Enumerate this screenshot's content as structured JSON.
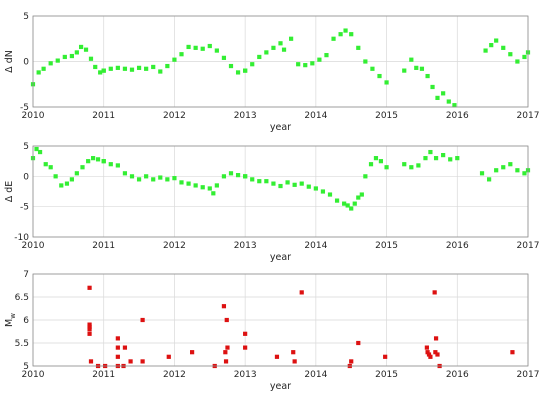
{
  "chart_data": [
    {
      "type": "scatter",
      "title": "",
      "xlabel": "year",
      "ylabel": "Δ dN",
      "xlim": [
        2010,
        2017
      ],
      "ylim": [
        -5,
        5
      ],
      "xticks": [
        "2010",
        "2011",
        "2012",
        "2013",
        "2014",
        "2015",
        "2016",
        "2017"
      ],
      "yticks": [
        "-5",
        "0",
        "5"
      ],
      "grid": true,
      "color": "#33ee33",
      "series": [
        {
          "segments": [
            {
              "x": [
                2010.0,
                2010.08,
                2010.15,
                2010.25,
                2010.35,
                2010.45,
                2010.55,
                2010.62,
                2010.68,
                2010.75,
                2010.82,
                2010.88,
                2010.95,
                2011.0
              ],
              "y": [
                -2.5,
                -1.2,
                -0.8,
                -0.2,
                0.1,
                0.5,
                0.6,
                1.0,
                1.6,
                1.3,
                0.3,
                -0.6,
                -1.2,
                -1.0
              ]
            },
            {
              "x": [
                2011.0,
                2011.1,
                2011.2,
                2011.3,
                2011.4,
                2011.5,
                2011.6,
                2011.7,
                2011.8,
                2011.9,
                2012.0,
                2012.1,
                2012.2,
                2012.3,
                2012.4,
                2012.5,
                2012.6,
                2012.7,
                2012.8,
                2012.9,
                2013.0
              ],
              "y": [
                -1.0,
                -0.8,
                -0.7,
                -0.8,
                -0.9,
                -0.7,
                -0.8,
                -0.6,
                -1.1,
                -0.5,
                0.2,
                0.8,
                1.6,
                1.5,
                1.4,
                1.7,
                1.2,
                0.4,
                -0.5,
                -1.2,
                -1.0
              ]
            },
            {
              "x": [
                2013.0,
                2013.1,
                2013.2,
                2013.3,
                2013.4,
                2013.5,
                2013.55,
                2013.65,
                2013.75,
                2013.85,
                2013.95,
                2014.05,
                2014.15,
                2014.25,
                2014.35,
                2014.42,
                2014.5,
                2014.6,
                2014.7,
                2014.8,
                2014.9,
                2015.0
              ],
              "y": [
                -1.0,
                -0.3,
                0.5,
                1.0,
                1.5,
                2.0,
                1.3,
                2.5,
                -0.3,
                -0.4,
                -0.2,
                0.2,
                0.7,
                2.5,
                3.0,
                3.4,
                3.0,
                1.5,
                0.0,
                -0.8,
                -1.6,
                -2.3
              ]
            },
            {
              "x": [
                2015.25,
                2015.35,
                2015.42,
                2015.5,
                2015.58,
                2015.65,
                2015.72,
                2015.8,
                2015.88,
                2015.96
              ],
              "y": [
                -1.0,
                0.2,
                -0.7,
                -0.8,
                -1.6,
                -2.8,
                -4.0,
                -3.5,
                -4.4,
                -4.8
              ]
            },
            {
              "x": [
                2016.4,
                2016.48,
                2016.55,
                2016.65,
                2016.75,
                2016.85,
                2016.95,
                2017.0
              ],
              "y": [
                1.2,
                1.8,
                2.3,
                1.5,
                0.8,
                0.0,
                0.5,
                1.0
              ]
            }
          ]
        }
      ]
    },
    {
      "type": "scatter",
      "title": "",
      "xlabel": "year",
      "ylabel": "Δ dE",
      "xlim": [
        2010,
        2017
      ],
      "ylim": [
        -10,
        5
      ],
      "xticks": [
        "2010",
        "2011",
        "2012",
        "2013",
        "2014",
        "2015",
        "2016",
        "2017"
      ],
      "yticks": [
        "-10",
        "-5",
        "0",
        "5"
      ],
      "grid": true,
      "color": "#33ee33",
      "series": [
        {
          "segments": [
            {
              "x": [
                2010.0,
                2010.05,
                2010.1,
                2010.18,
                2010.25,
                2010.32,
                2010.4,
                2010.48,
                2010.55,
                2010.62,
                2010.7,
                2010.78,
                2010.85,
                2010.92,
                2011.0
              ],
              "y": [
                3.0,
                4.5,
                4.0,
                2.0,
                1.5,
                0.0,
                -1.5,
                -1.2,
                -0.5,
                0.5,
                1.5,
                2.5,
                3.0,
                2.8,
                2.5
              ]
            },
            {
              "x": [
                2011.0,
                2011.1,
                2011.2,
                2011.3,
                2011.4,
                2011.5,
                2011.6,
                2011.7,
                2011.8,
                2011.9,
                2012.0,
                2012.1,
                2012.2,
                2012.3,
                2012.4,
                2012.5,
                2012.55,
                2012.6,
                2012.7,
                2012.8,
                2012.9,
                2013.0
              ],
              "y": [
                2.5,
                2.0,
                1.8,
                0.5,
                0.0,
                -0.5,
                0.0,
                -0.5,
                -0.2,
                -0.5,
                -0.3,
                -1.0,
                -1.2,
                -1.5,
                -1.8,
                -2.0,
                -2.8,
                -1.5,
                0.0,
                0.5,
                0.2,
                0.0
              ]
            },
            {
              "x": [
                2013.0,
                2013.1,
                2013.2,
                2013.3,
                2013.4,
                2013.5,
                2013.6,
                2013.7,
                2013.8,
                2013.9,
                2014.0,
                2014.1,
                2014.2,
                2014.3,
                2014.4,
                2014.45,
                2014.5,
                2014.55,
                2014.6,
                2014.65
              ],
              "y": [
                0.0,
                -0.5,
                -0.8,
                -0.8,
                -1.2,
                -1.6,
                -1.0,
                -1.4,
                -1.2,
                -1.7,
                -2.0,
                -2.5,
                -3.0,
                -4.0,
                -4.5,
                -4.8,
                -5.3,
                -4.5,
                -3.5,
                -3.0
              ]
            },
            {
              "x": [
                2014.7,
                2014.78,
                2014.85,
                2014.92,
                2015.0
              ],
              "y": [
                0.0,
                2.0,
                3.0,
                2.5,
                1.5
              ]
            },
            {
              "x": [
                2015.25,
                2015.35,
                2015.45,
                2015.55,
                2015.62,
                2015.7,
                2015.8,
                2015.9,
                2016.0
              ],
              "y": [
                2.0,
                1.5,
                1.8,
                3.0,
                4.0,
                3.0,
                3.5,
                2.8,
                3.0
              ]
            },
            {
              "x": [
                2016.35,
                2016.45,
                2016.55,
                2016.65,
                2016.75,
                2016.85,
                2016.95,
                2017.0
              ],
              "y": [
                0.5,
                -0.5,
                1.0,
                1.5,
                2.0,
                1.0,
                0.5,
                1.0
              ]
            }
          ]
        }
      ]
    },
    {
      "type": "scatter",
      "title": "",
      "xlabel": "year",
      "ylabel": "M",
      "ylabel_sub": "w",
      "xlim": [
        2010,
        2017
      ],
      "ylim": [
        5,
        7
      ],
      "xticks": [
        "2010",
        "2011",
        "2012",
        "2013",
        "2014",
        "2015",
        "2016",
        "2017"
      ],
      "yticks": [
        "5",
        "5.5",
        "6",
        "6.5",
        "7"
      ],
      "grid": true,
      "color": "#dd1111",
      "series": [
        {
          "x": [
            2010.8,
            2010.8,
            2010.8,
            2010.8,
            2010.8,
            2010.82,
            2010.92,
            2011.02,
            2011.2,
            2011.2,
            2011.2,
            2011.2,
            2011.28,
            2011.3,
            2011.38,
            2011.55,
            2011.55,
            2011.92,
            2012.25,
            2012.57,
            2012.7,
            2012.72,
            2012.73,
            2012.74,
            2012.75,
            2013.0,
            2013.0,
            2013.45,
            2013.68,
            2013.7,
            2013.8,
            2014.48,
            2014.5,
            2014.6,
            2014.98,
            2015.57,
            2015.58,
            2015.6,
            2015.62,
            2015.68,
            2015.69,
            2015.7,
            2015.72,
            2015.75,
            2016.78
          ],
          "y": [
            6.7,
            5.9,
            5.85,
            5.8,
            5.7,
            5.1,
            5.0,
            5.0,
            5.6,
            5.4,
            5.2,
            5.0,
            5.0,
            5.4,
            5.1,
            6.0,
            5.1,
            5.2,
            5.3,
            5.0,
            6.3,
            5.3,
            5.1,
            6.0,
            5.4,
            5.7,
            5.4,
            5.2,
            5.3,
            5.1,
            6.6,
            5.0,
            5.1,
            5.5,
            5.2,
            5.4,
            5.3,
            5.25,
            5.2,
            6.6,
            5.3,
            5.6,
            5.25,
            5.0,
            5.3
          ]
        }
      ]
    }
  ]
}
